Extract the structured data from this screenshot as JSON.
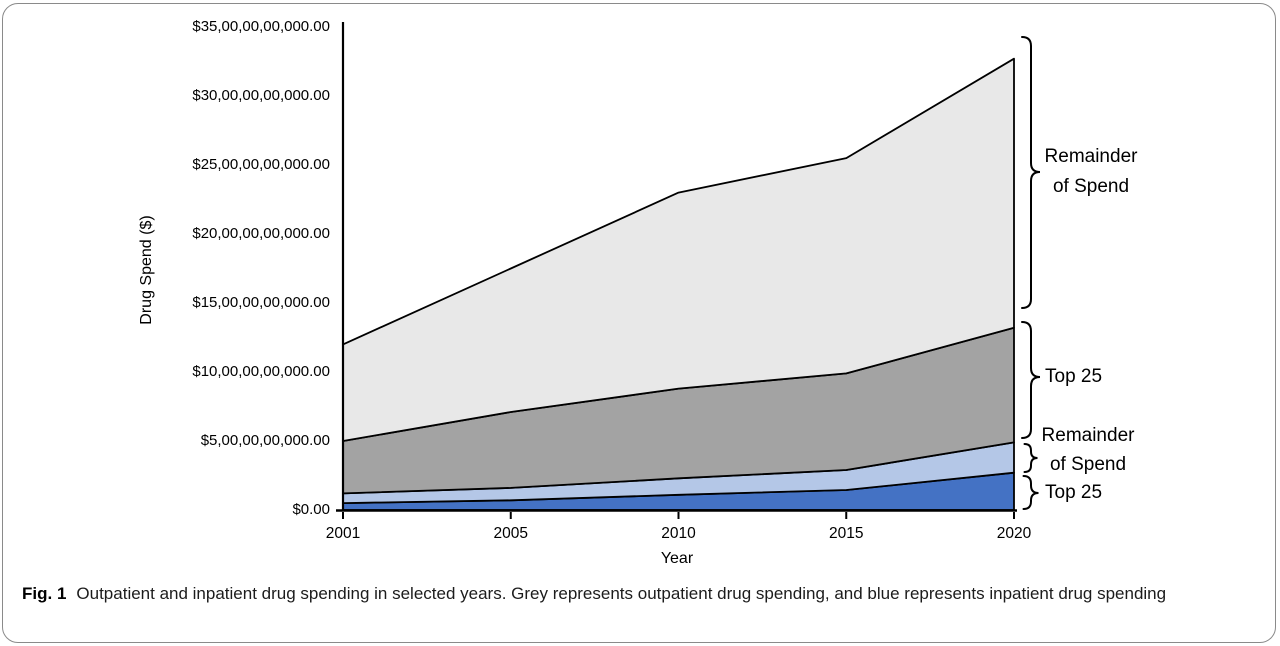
{
  "figure": {
    "caption_label": "Fig. 1",
    "caption_text": "Outpatient and inpatient drug spending in selected years. Grey represents outpatient drug spending, and blue represents inpatient drug spending"
  },
  "chart_data": {
    "type": "area",
    "stacked": true,
    "title": "",
    "xlabel": "Year",
    "ylabel": "Drug Spend ($)",
    "x_categories": [
      "2001",
      "2005",
      "2010",
      "2015",
      "2020"
    ],
    "y_tick_labels": [
      "$0.00",
      "$5,00,00,00,000.00",
      "$10,00,00,00,000.00",
      "$15,00,00,00,000.00",
      "$20,00,00,00,000.00",
      "$25,00,00,00,000.00",
      "$30,00,00,00,000.00",
      "$35,00,00,00,000.00"
    ],
    "y_unit_value_per_tick": 5000000000,
    "value_unit": "USD billions",
    "ylim": [
      0,
      35
    ],
    "grid": false,
    "legend": "none (brace annotations at right)",
    "series": [
      {
        "name": "Inpatient Top 25",
        "color": "#4472c4",
        "values": [
          0.5,
          0.7,
          1.1,
          1.45,
          2.7
        ]
      },
      {
        "name": "Inpatient Remainder of Spend",
        "color": "#b4c7e7",
        "values": [
          0.7,
          0.9,
          1.2,
          1.45,
          2.2
        ]
      },
      {
        "name": "Outpatient Top 25",
        "color": "#a3a3a3",
        "values": [
          3.8,
          5.5,
          6.5,
          7.0,
          8.3
        ]
      },
      {
        "name": "Outpatient Remainder of Spend",
        "color": "#e8e8e8",
        "values": [
          7.0,
          10.4,
          14.2,
          15.6,
          19.5
        ]
      }
    ],
    "stacked_totals": [
      12.0,
      17.5,
      23.0,
      25.5,
      32.7
    ],
    "annotations": [
      {
        "lines": [
          "Remainder",
          "of Spend"
        ],
        "series": "Outpatient Remainder of Spend"
      },
      {
        "lines": [
          "Top 25"
        ],
        "series": "Outpatient Top 25"
      },
      {
        "lines": [
          "Remainder",
          "of Spend"
        ],
        "series": "Inpatient Remainder of Spend"
      },
      {
        "lines": [
          "Top 25"
        ],
        "series": "Inpatient Top 25"
      }
    ],
    "colors": {
      "outline": "#000000",
      "inpatient_top25": "#4472c4",
      "inpatient_remainder": "#b4c7e7",
      "outpatient_top25": "#a3a3a3",
      "outpatient_remainder": "#e8e8e8"
    }
  }
}
